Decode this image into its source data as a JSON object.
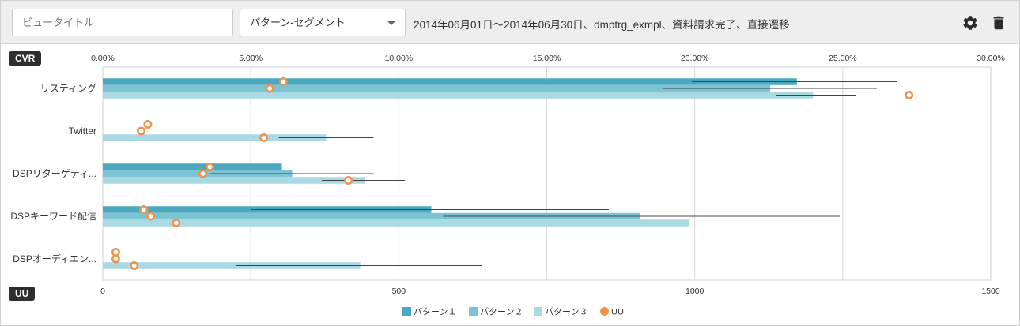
{
  "toolbar": {
    "view_title_placeholder": "ビュータイトル",
    "segment_select_value": "パターン-セグメント",
    "filter_summary": "2014年06月01日〜2014年06月30日、dmptrg_exmpl、資料請求完了、直接遷移",
    "settings_icon": "gear-icon",
    "delete_icon": "trash-icon"
  },
  "chart_data": {
    "type": "bar",
    "orientation": "horizontal",
    "categories": [
      "リスティング",
      "Twitter",
      "DSPリターゲティ...",
      "DSPキーワード配信",
      "DSPオーディエン..."
    ],
    "top_axis": {
      "label": "CVR",
      "range": [
        0,
        30
      ],
      "ticks": [
        "0.00%",
        "5.00%",
        "10.00%",
        "15.00%",
        "20.00%",
        "25.00%",
        "30.00%"
      ]
    },
    "bottom_axis": {
      "label": "UU",
      "range": [
        0,
        1500
      ],
      "ticks": [
        "0",
        "500",
        "1000",
        "1500"
      ]
    },
    "series": [
      {
        "name": "パターン１",
        "color": "#4aa8bf",
        "cvr": [
          23.45,
          null,
          6.05,
          11.1,
          null
        ],
        "error_low": [
          19.9,
          null,
          3.4,
          5.0,
          null
        ],
        "error_high": [
          26.85,
          null,
          8.6,
          17.1,
          null
        ],
        "uu": [
          305,
          76,
          181,
          69,
          22
        ]
      },
      {
        "name": "パターン２",
        "color": "#7cc3d3",
        "cvr": [
          22.55,
          null,
          6.4,
          18.15,
          null
        ],
        "error_low": [
          18.9,
          null,
          3.6,
          11.5,
          null
        ],
        "error_high": [
          26.15,
          null,
          9.15,
          24.9,
          null
        ],
        "uu": [
          282,
          65,
          169,
          81,
          22
        ]
      },
      {
        "name": "パターン３",
        "color": "#a9dae4",
        "cvr": [
          24.0,
          7.55,
          8.85,
          19.8,
          8.7
        ],
        "error_low": [
          22.75,
          5.95,
          7.4,
          16.05,
          4.5
        ],
        "error_high": [
          25.45,
          9.15,
          10.2,
          23.5,
          12.8
        ],
        "uu": [
          1362,
          272,
          415,
          124,
          53
        ]
      }
    ],
    "uu_series": {
      "name": "UU",
      "color": "#f0924a"
    },
    "grid": true,
    "legend_position": "bottom-center"
  }
}
